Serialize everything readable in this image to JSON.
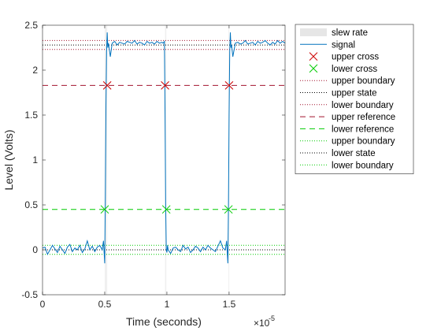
{
  "chart_data": {
    "type": "line",
    "title": "",
    "xlabel": "Time (seconds)",
    "ylabel": "Level (Volts)",
    "x_exponent_label": "×10",
    "x_exponent_power": "-5",
    "xlim": [
      0,
      1.95
    ],
    "ylim": [
      -0.5,
      2.5
    ],
    "x_ticks": [
      0,
      0.5,
      1,
      1.5
    ],
    "x_tick_labels": [
      "0",
      "0.5",
      "1",
      "1.5"
    ],
    "y_ticks": [
      -0.5,
      0,
      0.5,
      1,
      1.5,
      2,
      2.5
    ],
    "y_tick_labels": [
      "-0.5",
      "0",
      "0.5",
      "1",
      "1.5",
      "2",
      "2.5"
    ],
    "grid": false,
    "legend_position": "top-right outside",
    "colors": {
      "signal": "#0072BD",
      "upper": "#A2142F",
      "lower": "#00CC00",
      "state": "#000000",
      "slew": "#E6E6E6"
    },
    "series": [
      {
        "name": "signal",
        "x": [
          0,
          0.02,
          0.04,
          0.06,
          0.08,
          0.1,
          0.12,
          0.14,
          0.16,
          0.18,
          0.2,
          0.22,
          0.24,
          0.26,
          0.28,
          0.3,
          0.32,
          0.34,
          0.36,
          0.38,
          0.4,
          0.42,
          0.44,
          0.46,
          0.48,
          0.49,
          0.5,
          0.505,
          0.51,
          0.515,
          0.52,
          0.525,
          0.53,
          0.545,
          0.56,
          0.58,
          0.6,
          0.62,
          0.64,
          0.66,
          0.68,
          0.7,
          0.72,
          0.74,
          0.76,
          0.78,
          0.8,
          0.82,
          0.84,
          0.86,
          0.88,
          0.9,
          0.92,
          0.94,
          0.96,
          0.97,
          0.98,
          0.985,
          0.99,
          0.995,
          1.0,
          1.005,
          1.01,
          1.03,
          1.05,
          1.07,
          1.09,
          1.11,
          1.13,
          1.15,
          1.17,
          1.19,
          1.21,
          1.23,
          1.25,
          1.27,
          1.29,
          1.31,
          1.33,
          1.35,
          1.37,
          1.39,
          1.41,
          1.43,
          1.45,
          1.47,
          1.48,
          1.49,
          1.495,
          1.5,
          1.505,
          1.51,
          1.515,
          1.52,
          1.53,
          1.55,
          1.57,
          1.59,
          1.61,
          1.63,
          1.65,
          1.67,
          1.69,
          1.71,
          1.73,
          1.75,
          1.77,
          1.79,
          1.81,
          1.83,
          1.85,
          1.87,
          1.89,
          1.91,
          1.93,
          1.95
        ],
        "y": [
          0.02,
          0.03,
          -0.05,
          0.0,
          0.05,
          0.01,
          -0.03,
          0.04,
          0.0,
          -0.04,
          0.03,
          0.06,
          -0.02,
          0.02,
          0.0,
          0.05,
          -0.03,
          0.01,
          0.1,
          0.0,
          0.04,
          -0.02,
          0.03,
          0.05,
          0.0,
          0.1,
          -0.15,
          0.6,
          1.6,
          2.2,
          2.42,
          2.25,
          2.3,
          2.15,
          2.3,
          2.32,
          2.28,
          2.31,
          2.3,
          2.29,
          2.32,
          2.31,
          2.3,
          2.33,
          2.29,
          2.31,
          2.3,
          2.28,
          2.32,
          2.3,
          2.31,
          2.29,
          2.32,
          2.3,
          2.31,
          2.3,
          2.32,
          1.5,
          0.5,
          0.0,
          -0.03,
          0.05,
          0.0,
          -0.04,
          0.02,
          0.03,
          0.0,
          -0.02,
          0.05,
          0.01,
          0.03,
          -0.03,
          0.0,
          0.04,
          0.02,
          -0.02,
          0.03,
          0.0,
          0.05,
          0.02,
          0.0,
          -0.02,
          0.04,
          0.1,
          0.02,
          0.0,
          0.1,
          -0.15,
          0.5,
          1.5,
          2.2,
          2.42,
          2.25,
          2.28,
          2.15,
          2.3,
          2.31,
          2.29,
          2.3,
          2.33,
          2.29,
          2.3,
          2.31,
          2.28,
          2.32,
          2.3,
          2.31,
          2.33,
          2.3,
          2.28,
          2.31,
          2.29,
          2.33,
          2.3,
          2.32,
          2.3
        ]
      },
      {
        "name": "upper cross",
        "x": [
          0.52,
          0.985,
          1.5
        ],
        "y": [
          1.83,
          1.83,
          1.83
        ]
      },
      {
        "name": "lower cross",
        "x": [
          0.5,
          0.995,
          1.495
        ],
        "y": [
          0.45,
          0.45,
          0.45
        ]
      }
    ],
    "reference_lines": [
      {
        "legend": "upper boundary",
        "y": 2.33,
        "style": "dotted",
        "color": "#A2142F"
      },
      {
        "legend": "upper state",
        "y": 2.28,
        "style": "dotted",
        "color": "#000000"
      },
      {
        "legend": "lower boundary",
        "y": 2.23,
        "style": "dotted",
        "color": "#A2142F"
      },
      {
        "legend": "upper reference",
        "y": 1.83,
        "style": "dashed",
        "color": "#A2142F"
      },
      {
        "legend": "lower reference",
        "y": 0.45,
        "style": "dashed",
        "color": "#00CC00"
      },
      {
        "legend": "upper boundary",
        "y": 0.05,
        "style": "dotted",
        "color": "#00CC00"
      },
      {
        "legend": "lower state",
        "y": 0.0,
        "style": "dotted",
        "color": "#000000"
      },
      {
        "legend": "lower boundary",
        "y": -0.05,
        "style": "dotted",
        "color": "#00CC00"
      }
    ],
    "slew_rate_regions": [
      {
        "x": [
          0.5,
          0.52
        ]
      },
      {
        "x": [
          0.985,
          0.995
        ]
      },
      {
        "x": [
          1.495,
          1.5
        ]
      }
    ],
    "legend": [
      {
        "label": "slew rate",
        "kind": "patch",
        "color": "#E6E6E6"
      },
      {
        "label": "signal",
        "kind": "line",
        "color": "#0072BD",
        "dash": "solid"
      },
      {
        "label": "upper cross",
        "kind": "marker-x",
        "color": "#CC0000"
      },
      {
        "label": "lower cross",
        "kind": "marker-x",
        "color": "#00CC00"
      },
      {
        "label": "upper boundary",
        "kind": "line",
        "color": "#A2142F",
        "dash": "dotted"
      },
      {
        "label": "upper state",
        "kind": "line",
        "color": "#000000",
        "dash": "dotted"
      },
      {
        "label": "lower boundary",
        "kind": "line",
        "color": "#A2142F",
        "dash": "dotted"
      },
      {
        "label": "upper reference",
        "kind": "line",
        "color": "#A2142F",
        "dash": "dashed"
      },
      {
        "label": "lower reference",
        "kind": "line",
        "color": "#00CC00",
        "dash": "dashed"
      },
      {
        "label": "upper boundary",
        "kind": "line",
        "color": "#00CC00",
        "dash": "dotted"
      },
      {
        "label": "lower state",
        "kind": "line",
        "color": "#000000",
        "dash": "dotted"
      },
      {
        "label": "lower boundary",
        "kind": "line",
        "color": "#00CC00",
        "dash": "dotted"
      }
    ]
  }
}
